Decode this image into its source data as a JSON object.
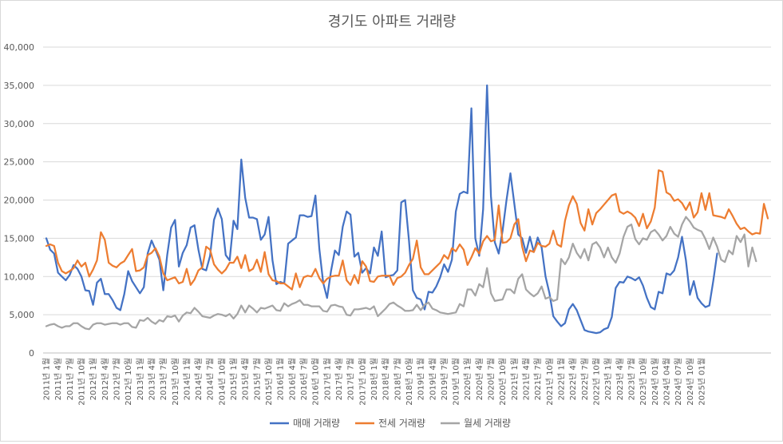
{
  "chart_data": {
    "type": "line",
    "title": "경기도 아파트 거래량",
    "xlabel": "",
    "ylabel": "",
    "ylim": [
      0,
      40000
    ],
    "yticks": [
      0,
      5000,
      10000,
      15000,
      20000,
      25000,
      30000,
      35000,
      40000
    ],
    "ytick_labels": [
      "0",
      "5,000",
      "10,000",
      "15,000",
      "20,000",
      "25,000",
      "30,000",
      "35,000",
      "40,000"
    ],
    "grid": "horizontal",
    "legend_position": "bottom",
    "x_tick_labels": [
      "2011년 1월",
      "2011년 4월",
      "2011년 7월",
      "2011년 10월",
      "2012년 1월",
      "2012년 4월",
      "2012년 7월",
      "2012년 10월",
      "2013년 1월",
      "2013년 4월",
      "2013년 7월",
      "2013년 10월",
      "2014년 1월",
      "2014년 4월",
      "2014년 7월",
      "2014년 10월",
      "2015년 1월",
      "2015년 4월",
      "2015년 7월",
      "2015년 10월",
      "2016년 1월",
      "2016년 4월",
      "2016년 7월",
      "2016년 10월",
      "2017년 1월",
      "2017년 4월",
      "2017년 7월",
      "2017년 10월",
      "2018년 1월",
      "2018년 4월",
      "2018년 7월",
      "2018년 10월",
      "2019년 1월",
      "2019년 4월",
      "2019년 7월",
      "2019년 10월",
      "2020년 1월",
      "2020년 4월",
      "2020년 7월",
      "2020년 10월",
      "2021년 1월",
      "2021년 4월",
      "2021년 7월",
      "2021년 10월",
      "2022년 1월",
      "2022년 4월",
      "2022년 7월",
      "2022년 10월",
      "2023년 1월",
      "2023년 4월",
      "2023년 7월",
      "2023년 10월",
      "2024년 01월",
      "2024년 04월",
      "2024년 07월",
      "2024년 10월",
      "2025년 01월"
    ],
    "series": [
      {
        "name": "매매 거래량",
        "color": "#4472C4",
        "values": [
          15000,
          13500,
          13000,
          10500,
          10000,
          9500,
          10200,
          11500,
          11000,
          10000,
          8200,
          8100,
          6300,
          9200,
          9700,
          7700,
          7700,
          6900,
          5900,
          5600,
          7700,
          10700,
          9400,
          8600,
          7800,
          8600,
          13000,
          14700,
          13500,
          12200,
          8200,
          12800,
          16400,
          17400,
          11300,
          13100,
          14100,
          16400,
          16700,
          13500,
          11000,
          10800,
          12700,
          17400,
          18900,
          17500,
          12800,
          12100,
          17300,
          16200,
          25300,
          20300,
          17700,
          17700,
          17500,
          14800,
          15500,
          17800,
          12100,
          9000,
          9300,
          9100,
          14300,
          14700,
          15100,
          18000,
          18000,
          17800,
          17900,
          20600,
          13600,
          9200,
          7200,
          10700,
          13400,
          12800,
          16500,
          18500,
          18100,
          12600,
          13100,
          10500,
          11100,
          10400,
          13800,
          12700,
          15900,
          9900,
          10100,
          10200,
          10800,
          19700,
          20000,
          14700,
          8200,
          7200,
          7000,
          5700,
          8000,
          7900,
          8700,
          9900,
          11600,
          10600,
          12200,
          18500,
          20800,
          21100,
          20900,
          32000,
          15000,
          12700,
          18800,
          35000,
          20500,
          14500,
          13000,
          16000,
          20000,
          23500,
          19500,
          15500,
          15000,
          13100,
          15200,
          13200,
          15100,
          13800,
          10000,
          7800,
          4800,
          4100,
          3500,
          3900,
          5700,
          6400,
          5600,
          4300,
          3000,
          2800,
          2700,
          2600,
          2700,
          3100,
          3300,
          4700,
          8500,
          9300,
          9200,
          10000,
          9800,
          9500,
          9900,
          8800,
          7200,
          6000,
          5700,
          8000,
          7800,
          10400,
          10200,
          10800,
          12500,
          15200,
          12100,
          7600,
          9400,
          7200,
          6500,
          6000,
          6200,
          9400,
          13000
        ]
      },
      {
        "name": "전세 거래량",
        "color": "#ED7D31",
        "values": [
          14000,
          14200,
          14000,
          11800,
          10700,
          10400,
          10700,
          11100,
          12100,
          11300,
          11800,
          10000,
          10900,
          12100,
          15800,
          14800,
          11800,
          11400,
          11200,
          11700,
          12000,
          12800,
          13600,
          10700,
          10800,
          11200,
          12800,
          13100,
          13700,
          12600,
          10400,
          9500,
          9700,
          9900,
          9100,
          9300,
          11000,
          8900,
          9600,
          10800,
          11200,
          13900,
          13500,
          11600,
          10900,
          10400,
          10900,
          11800,
          11800,
          12600,
          11100,
          12800,
          10700,
          11000,
          12200,
          10600,
          13200,
          10300,
          9500,
          9400,
          9100,
          9100,
          8700,
          8300,
          10400,
          8600,
          9900,
          10100,
          10000,
          11000,
          9800,
          9100,
          9700,
          10000,
          10100,
          10100,
          12100,
          9500,
          8900,
          10200,
          9100,
          12000,
          11300,
          9400,
          9300,
          10000,
          10100,
          10100,
          10100,
          8900,
          9800,
          10000,
          10500,
          11500,
          12300,
          14700,
          11200,
          10300,
          10300,
          10800,
          11300,
          11800,
          12800,
          12300,
          13700,
          13300,
          14200,
          13500,
          11500,
          12500,
          13700,
          13000,
          14600,
          15300,
          14600,
          14800,
          19300,
          14400,
          14500,
          15000,
          16800,
          17500,
          13900,
          12000,
          13400,
          13200,
          14400,
          14000,
          13900,
          14300,
          16000,
          14200,
          13900,
          17300,
          19300,
          20500,
          19500,
          17000,
          16000,
          18800,
          16800,
          18300,
          18800,
          19400,
          20000,
          20600,
          20800,
          18500,
          18200,
          18500,
          18200,
          17700,
          16600,
          18200,
          16300,
          17200,
          19000,
          23900,
          23700,
          21000,
          20700,
          19900,
          20100,
          19600,
          18700,
          19700,
          17700,
          18400,
          20900,
          18700,
          20900,
          18000,
          17900,
          17800,
          17600,
          18800,
          17900,
          16900,
          16200,
          16400,
          15900,
          15500,
          15700,
          15600,
          19500,
          17600
        ]
      },
      {
        "name": "월세 거래량",
        "color": "#A5A5A5",
        "values": [
          3500,
          3700,
          3800,
          3500,
          3300,
          3500,
          3500,
          3900,
          3900,
          3500,
          3200,
          3100,
          3700,
          3900,
          3900,
          3700,
          3800,
          3900,
          3900,
          3700,
          3900,
          3900,
          3400,
          3300,
          4300,
          4200,
          4600,
          4100,
          3800,
          4300,
          4100,
          4800,
          4700,
          4900,
          4100,
          4900,
          5300,
          5200,
          5900,
          5400,
          4800,
          4700,
          4600,
          4900,
          5100,
          5000,
          4800,
          5100,
          4500,
          5100,
          6200,
          5300,
          6200,
          5800,
          5300,
          5900,
          5800,
          6000,
          6200,
          5600,
          5500,
          6500,
          6100,
          6400,
          6600,
          6900,
          6300,
          6300,
          6100,
          6100,
          6100,
          5500,
          5400,
          6200,
          6300,
          6100,
          6000,
          5000,
          4900,
          5700,
          5700,
          5800,
          5900,
          5700,
          6100,
          4800,
          5300,
          5800,
          6400,
          6600,
          6200,
          5900,
          5500,
          5500,
          5600,
          6300,
          5600,
          6300,
          6600,
          5800,
          5600,
          5300,
          5200,
          5100,
          5200,
          5300,
          6400,
          6100,
          8300,
          8300,
          7500,
          9000,
          8600,
          11100,
          7800,
          6800,
          6900,
          7000,
          8300,
          8300,
          7800,
          9700,
          10300,
          8300,
          7800,
          7400,
          7800,
          8700,
          7100,
          7300,
          6800,
          7000,
          12300,
          11600,
          12500,
          14300,
          13100,
          12400,
          13600,
          12100,
          14200,
          14500,
          13800,
          12500,
          13800,
          12500,
          11800,
          13000,
          15200,
          16500,
          16800,
          14900,
          14200,
          15000,
          14800,
          15800,
          16100,
          15500,
          14700,
          15300,
          16500,
          15600,
          15200,
          16800,
          17800,
          17200,
          16400,
          16100,
          15900,
          14900,
          13600,
          15100,
          13900,
          12200,
          11900,
          13400,
          12900,
          15300,
          14500,
          15500,
          11300,
          13800,
          12000
        ]
      }
    ]
  }
}
